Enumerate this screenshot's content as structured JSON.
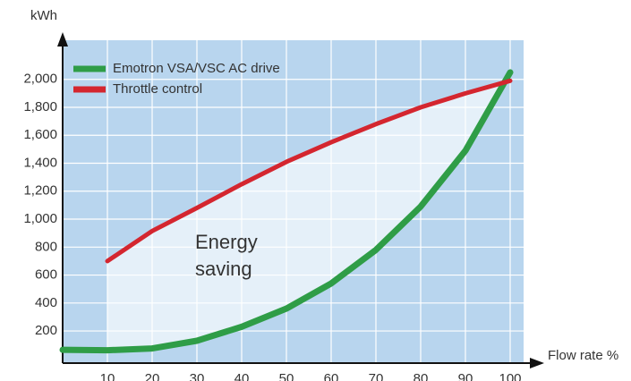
{
  "chart_data": {
    "type": "line",
    "ylabel": "kWh",
    "xlabel": "Flow rate %",
    "annotation": [
      "Energy",
      "saving"
    ],
    "x": [
      0,
      10,
      20,
      30,
      40,
      50,
      60,
      70,
      80,
      90,
      100
    ],
    "series": [
      {
        "name": "Emotron VSA/VSC AC drive",
        "color": "#2f9d47",
        "values": [
          65,
          62,
          75,
          130,
          230,
          360,
          540,
          780,
          1090,
          1490,
          2050
        ]
      },
      {
        "name": "Throttle control",
        "color": "#d4262f",
        "values": [
          null,
          700,
          915,
          1080,
          1250,
          1410,
          1550,
          1680,
          1800,
          1900,
          1990
        ]
      }
    ],
    "xlim": [
      0,
      103
    ],
    "ylim": [
      -30,
      2280
    ],
    "xticks": [
      10,
      20,
      30,
      40,
      50,
      60,
      70,
      80,
      90,
      100
    ],
    "yticks": [
      200,
      400,
      600,
      800,
      {
        "value": 1000,
        "label": "1,000"
      },
      {
        "value": 1200,
        "label": "1,200"
      },
      {
        "value": 1400,
        "label": "1,400"
      },
      {
        "value": 1600,
        "label": "1,600"
      },
      {
        "value": 1800,
        "label": "1,800"
      },
      {
        "value": 2000,
        "label": "2,000"
      }
    ],
    "grid": true,
    "legend": "upper left",
    "background": "#b8d5ee",
    "fill": "#e5f0f9"
  }
}
